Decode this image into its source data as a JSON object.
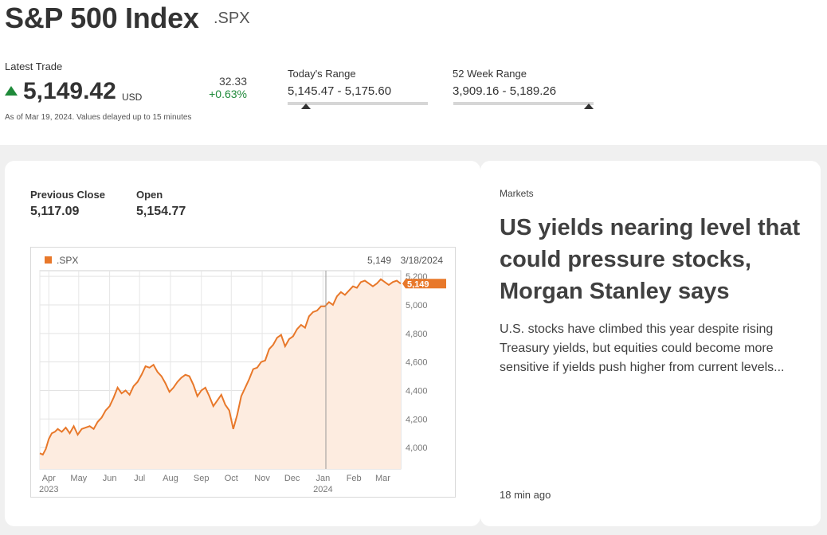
{
  "header": {
    "title": "S&P 500 Index",
    "ticker": ".SPX",
    "latest_trade_label": "Latest Trade",
    "price": "5,149.42",
    "currency": "USD",
    "change": "32.33",
    "change_pct": "+0.63%",
    "as_of": "As of Mar 19, 2024. Values delayed up to 15 minutes",
    "todays_range_label": "Today's Range",
    "todays_range": "5,145.47 - 5,175.60",
    "week52_range_label": "52 Week Range",
    "week52_range": "3,909.16 - 5,189.26",
    "up_color": "#1f8a3a"
  },
  "stats": {
    "prev_close_label": "Previous Close",
    "prev_close": "5,117.09",
    "open_label": "Open",
    "open": "5,154.77"
  },
  "chart_legend": {
    "series_name": ".SPX",
    "hover_value": "5,149",
    "hover_date": "3/18/2024",
    "current_label": "5,149",
    "line_color": "#e8782a",
    "fill_color": "#fdece0"
  },
  "chart_data": {
    "type": "area",
    "x_axis_ticks": [
      "Apr",
      "May",
      "Jun",
      "Jul",
      "Aug",
      "Sep",
      "Oct",
      "Nov",
      "Dec",
      "Jan",
      "Feb",
      "Mar"
    ],
    "x_axis_years": [
      "2023",
      "2024"
    ],
    "y_ticks": [
      "4,000",
      "4,200",
      "4,400",
      "4,600",
      "4,800",
      "5,000",
      "5,200"
    ],
    "ylim": [
      3850,
      5240
    ],
    "last_value": 5149,
    "series": [
      {
        "name": ".SPX",
        "x_day": [
          0,
          3,
          6,
          9,
          12,
          15,
          18,
          22,
          26,
          30,
          34,
          38,
          42,
          46,
          50,
          54,
          58,
          62,
          66,
          70,
          74,
          78,
          82,
          86,
          90,
          94,
          98,
          102,
          106,
          110,
          114,
          118,
          122,
          126,
          130,
          134,
          138,
          142,
          146,
          150,
          154,
          158,
          162,
          166,
          170,
          174,
          178,
          182,
          186,
          190,
          194,
          198,
          202,
          206,
          210,
          214,
          218,
          222,
          226,
          230,
          234,
          238,
          242,
          246,
          250,
          254,
          258,
          262,
          266,
          270,
          274,
          278,
          282,
          286,
          290,
          294,
          298,
          302,
          306,
          310,
          314,
          318,
          322,
          326,
          330,
          334,
          338,
          342,
          346,
          350,
          354,
          358,
          362
        ],
        "values": [
          3960,
          3950,
          3990,
          4060,
          4100,
          4110,
          4130,
          4110,
          4140,
          4100,
          4150,
          4090,
          4130,
          4140,
          4150,
          4130,
          4180,
          4210,
          4260,
          4290,
          4350,
          4420,
          4380,
          4400,
          4370,
          4430,
          4460,
          4510,
          4570,
          4560,
          4580,
          4530,
          4500,
          4450,
          4390,
          4420,
          4460,
          4490,
          4510,
          4500,
          4440,
          4360,
          4400,
          4420,
          4360,
          4290,
          4330,
          4370,
          4300,
          4260,
          4130,
          4230,
          4360,
          4420,
          4480,
          4550,
          4560,
          4600,
          4610,
          4690,
          4720,
          4770,
          4790,
          4710,
          4760,
          4780,
          4830,
          4860,
          4840,
          4920,
          4950,
          4960,
          4990,
          4990,
          5020,
          5000,
          5060,
          5090,
          5070,
          5100,
          5130,
          5120,
          5160,
          5170,
          5150,
          5130,
          5150,
          5180,
          5160,
          5140,
          5160,
          5170,
          5149
        ]
      }
    ]
  },
  "article": {
    "category": "Markets",
    "headline": "US yields nearing level that could pressure stocks, Morgan Stanley says",
    "summary": "U.S. stocks have climbed this year despite rising Treasury yields, but equities could become more sensitive if yields push higher from current levels...",
    "time_ago": "18 min ago"
  }
}
